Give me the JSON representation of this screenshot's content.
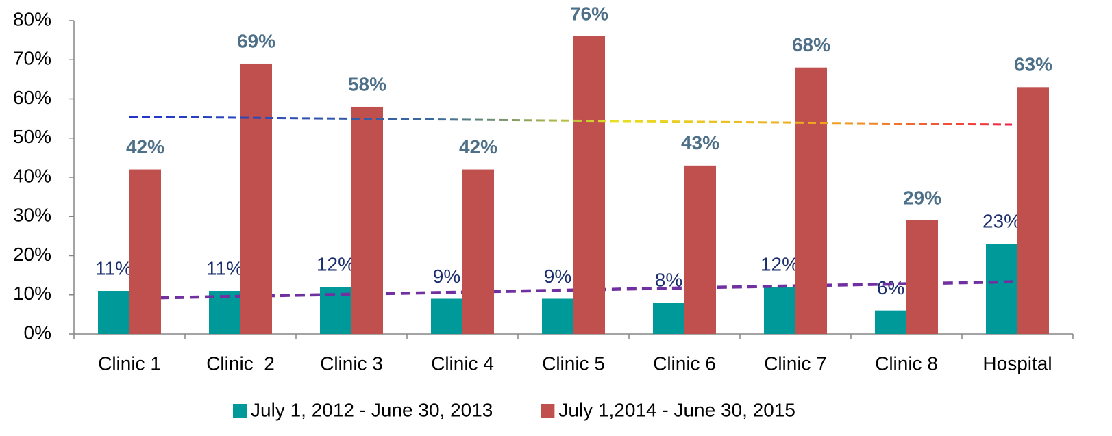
{
  "chart_data": {
    "type": "bar",
    "categories": [
      "Clinic 1",
      "Clinic  2",
      "Clinic 3",
      "Clinic 4",
      "Clinic 5",
      "Clinic 6",
      "Clinic 7",
      "Clinic 8",
      "Hospital"
    ],
    "series": [
      {
        "name": "July 1, 2012 - June 30, 2013",
        "color": "#009999",
        "values": [
          11,
          11,
          12,
          9,
          9,
          8,
          12,
          6,
          23
        ],
        "value_labels": [
          "11%",
          "11%",
          "12%",
          "9%",
          "9%",
          "8%",
          "12%",
          "6%",
          "23%"
        ]
      },
      {
        "name": "July 1,2014 - June 30, 2015",
        "color": "#c0504d",
        "values": [
          42,
          69,
          58,
          42,
          76,
          43,
          68,
          29,
          63
        ],
        "value_labels": [
          "42%",
          "69%",
          "58%",
          "42%",
          "76%",
          "43%",
          "68%",
          "29%",
          "63%"
        ]
      }
    ],
    "ylim": [
      0,
      80
    ],
    "yticks": [
      {
        "value": 0,
        "label": "0%"
      },
      {
        "value": 10,
        "label": "10%"
      },
      {
        "value": 20,
        "label": "20%"
      },
      {
        "value": 30,
        "label": "30%"
      },
      {
        "value": 40,
        "label": "40%"
      },
      {
        "value": 50,
        "label": "50%"
      },
      {
        "value": 60,
        "label": "60%"
      },
      {
        "value": 70,
        "label": "70%"
      },
      {
        "value": 80,
        "label": "80%"
      }
    ],
    "grid": false,
    "trendline": true,
    "legend": "bottom"
  }
}
